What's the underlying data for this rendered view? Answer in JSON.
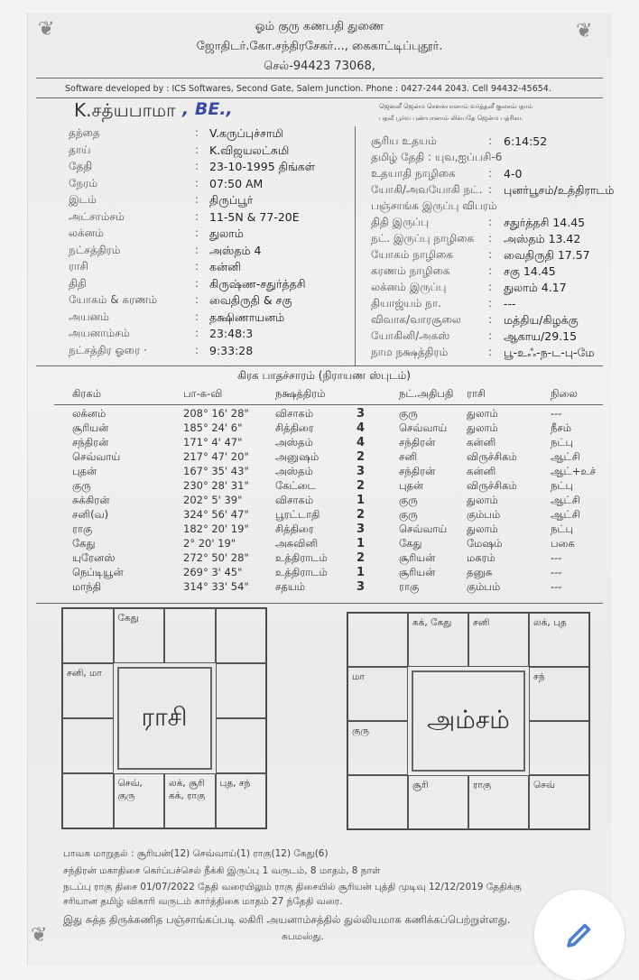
{
  "header": {
    "line1": "ஓம் குரு கணபதி துணை",
    "line2": "ஜோதிடர்.கோ.சந்திரசேகர்..., கைகாட்டிப்புதூர்.",
    "line3": "செல்-94423 73068,",
    "software": "Software developed by : ICS Softwares, Second Gate, Salem Junction. Phone : 0427-244 2043. Cell  94432-45654."
  },
  "name": "K.சத்யபாமா",
  "handwritten": ", BE.,",
  "blessing": [
    "ஜெனனீ ஜென்ம சௌக்யானாம் வர்த்தனீ குலசம்பதாம்",
    "பதவீ பூர்வ புண்யானாம் லிக்யதே ஜென்ம பத்ரிகா."
  ],
  "details": [
    {
      "label": "தந்தை",
      "value": "V.கருப்புச்சாமி"
    },
    {
      "label": "தாய்",
      "value": "K.விஜயலட்சுமி"
    },
    {
      "label": "தேதி",
      "value": "23-10-1995 திங்கள்"
    },
    {
      "label": "நேரம்",
      "value": "07:50 AM"
    },
    {
      "label": "இடம்",
      "value": "திருப்பூர்"
    },
    {
      "label": "அட்சாம்சம்",
      "value": "11-5N & 77-20E"
    },
    {
      "label": "லக்னம்",
      "value": "துலாம்"
    },
    {
      "label": "நட்சத்திரம்",
      "value": "அஸ்தம்  4"
    },
    {
      "label": "ராசி",
      "value": "கன்னி"
    },
    {
      "label": "திதி",
      "value": "கிருஷ்ண-சதுர்த்தசி"
    },
    {
      "label": "யோகம் & கரணம்",
      "value": "வைதிருதி & சகு"
    },
    {
      "label": "அயனம்",
      "value": "தக்ஷிணாயனம்"
    },
    {
      "label": "அயனாம்சம்",
      "value": "23:48:3"
    },
    {
      "label": "நட்சத்திர ஓரை  ·",
      "value": "9:33:28"
    }
  ],
  "panchang": [
    {
      "label": "சூரிய உதயம்",
      "value": "6:14:52"
    },
    {
      "label": "தமிழ் தேதி  : யுவ,ஐப்பசி-6",
      "value": ""
    },
    {
      "label": "உதயாதி நாழிகை",
      "value": "4-0"
    },
    {
      "label": "யோகி/அவயோகி நட்.",
      "value": "புனர்பூசம்/உத்திராடம்"
    },
    {
      "label": "பஞ்சாங்க இருப்பு விபரம்",
      "value": ""
    },
    {
      "label": "திதி இருப்பு",
      "value": "சதுர்த்தசி 14.45"
    },
    {
      "label": "நட். இருப்பு நாழிகை",
      "value": "அஸ்தம் 13.42"
    },
    {
      "label": "யோகம் நாழிகை",
      "value": "வைதிருதி 17.57"
    },
    {
      "label": "கரணம் நாழிகை",
      "value": "சகு 14.45"
    },
    {
      "label": "லக்னம் இருப்பு",
      "value": "துலாம்  4.17"
    },
    {
      "label": "தியாஜ்யம் நா.",
      "value": "---"
    },
    {
      "label": "விவாக/வாரசூலை",
      "value": "மத்திய/கிழக்கு"
    },
    {
      "label": "யோகினி/அகஸ்",
      "value": "ஆகாய/29.15"
    },
    {
      "label": "நாம நக்ஷத்திரம்",
      "value": "பூ-உஃ-ந-ட-பு-மே"
    }
  ],
  "table": {
    "title": "கிரக பாதச்சாரம் (நிராயண ஸ்புடம்)",
    "headers": [
      "கிரகம்",
      "பா-க-வி",
      "நக்ஷத்திரம்",
      "",
      "நட்.அதிபதி",
      "ராசி",
      "நிலை"
    ],
    "rows": [
      [
        "லக்னம்",
        "208° 16' 28\"",
        "விசாகம்",
        "3",
        "குரு",
        "துலாம்",
        "---"
      ],
      [
        "சூரியன்",
        "185° 24' 6\"",
        "சித்திரை",
        "4",
        "செவ்வாய்",
        "துலாம்",
        "நீசம்"
      ],
      [
        "சந்திரன்",
        "171° 4' 47\"",
        "அஸ்தம்",
        "4",
        "சந்திரன்",
        "கன்னி",
        "நட்பு"
      ],
      [
        "செவ்வாய்",
        "217° 47' 20\"",
        "அனுஷம்",
        "2",
        "சனி",
        "விருச்சிகம்",
        "ஆட்சி"
      ],
      [
        "புதன்",
        "167° 35' 43\"",
        "அஸ்தம்",
        "3",
        "சந்திரன்",
        "கன்னி",
        "ஆட்+உச்"
      ],
      [
        "குரு",
        "230° 28' 31\"",
        "கேட்டை",
        "2",
        "புதன்",
        "விருச்சிகம்",
        "நட்பு"
      ],
      [
        "சுக்கிரன்",
        "202° 5' 39\"",
        "விசாகம்",
        "1",
        "குரு",
        "துலாம்",
        "ஆட்சி"
      ],
      [
        "சனி(வ)",
        "324° 56' 47\"",
        "பூரட்டாதி",
        "2",
        "குரு",
        "கும்பம்",
        "ஆட்சி"
      ],
      [
        "ராகு",
        "182° 20' 19\"",
        "சித்திரை",
        "3",
        "செவ்வாய்",
        "துலாம்",
        "நட்பு"
      ],
      [
        "கேது",
        "2° 20' 19\"",
        "அசுவினி",
        "1",
        "கேது",
        "மேஷம்",
        "பகை"
      ],
      [
        "யுரேனஸ்",
        "272° 50' 28\"",
        "உத்திராடம்",
        "2",
        "சூரியன்",
        "மகரம்",
        "---"
      ],
      [
        "நெப்டியூன்",
        "269° 3' 45\"",
        "உத்திராடம்",
        "1",
        "சூரியன்",
        "தனுசு",
        "---"
      ],
      [
        "மாந்தி",
        "314° 33' 54\"",
        "சதயம்",
        "3",
        "ராகு",
        "கும்பம்",
        "---"
      ]
    ]
  },
  "rasi": {
    "title": "ராசி",
    "cells": {
      "c0": "",
      "c1": "கேது",
      "c2": "",
      "c3": "",
      "c4": "சனி, மா",
      "c7": "",
      "c8": "",
      "c11": "",
      "c12": "",
      "c13": "செவ், குரு",
      "c14": "லக், சூரி கக், ராகு",
      "c15": "புத, சந்"
    }
  },
  "amsam": {
    "title": "அம்சம்",
    "cells": {
      "c0": "",
      "c1": "கக், கேது",
      "c2": "சனி",
      "c3": "லக், புத",
      "c4": "மா",
      "c7": "சந்",
      "c8": "குரு",
      "c11": "",
      "c12": "",
      "c13": "சூரி",
      "c14": "ராகு",
      "c15": "செவ்"
    }
  },
  "footer": [
    "பாவக மாறுதல் :  சூரியன்(12) செவ்வாய்(1) ராகு(12) கேது(6)",
    "சந்திரன் மகாதிசை கெர்ப்பச்செல் நீக்கி இருப்பு 1 வருடம், 8 மாதம், 8 நாள்",
    "நடப்பு ராகு திசை 01/07/2022 தேதி வரையிலும் ராகு திசையில் சூரியன் புத்தி முடிவு 12/12/2019 தேதிக்கு",
    "சரியான தமிழ் விகாரி வருடம் கார்த்திகை மாதம் 27 ந்தேதி  வரை.",
    "இது சுத்த திருக்கணித பஞ்சாங்கப்படி லகிரி அயனாம்சத்தில் துல்லியமாக கணிக்கப்பெற்றுள்ளது.",
    "சுபமஸ்து."
  ],
  "edit_button": {
    "icon": "pencil-icon",
    "color": "#4a7fd4"
  }
}
